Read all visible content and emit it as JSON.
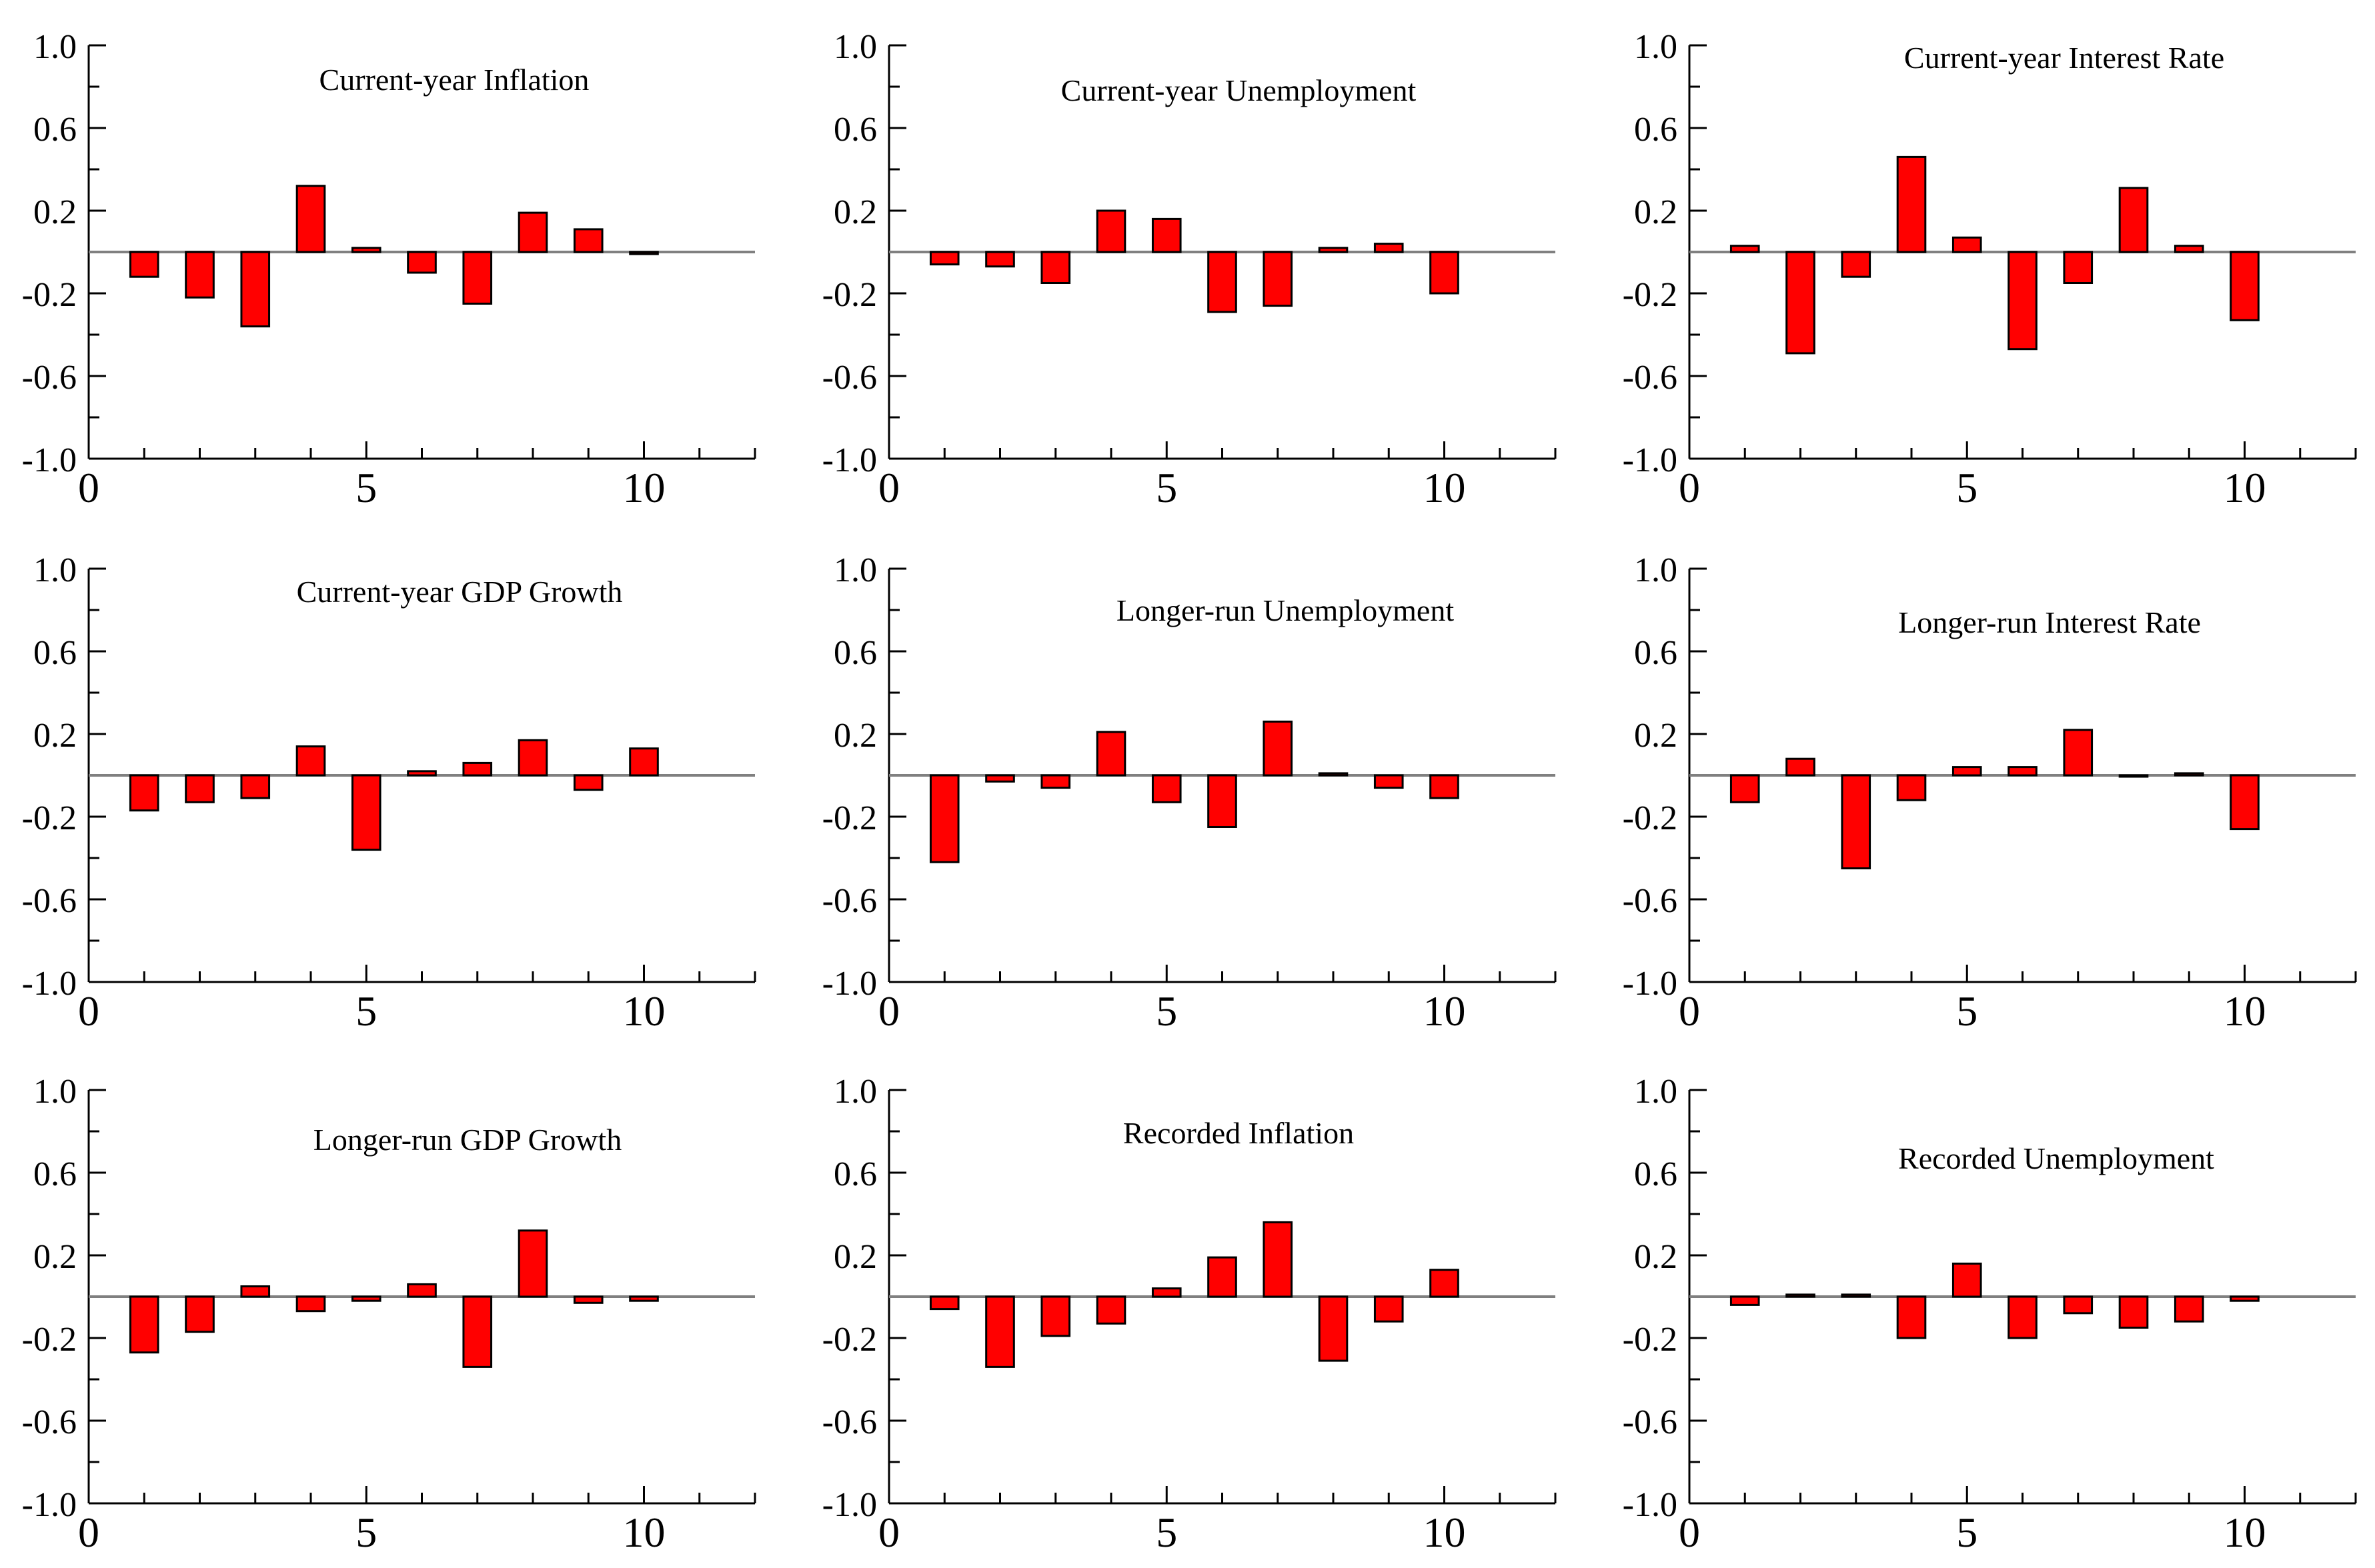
{
  "figure": {
    "x_ticks": [
      "0",
      "5",
      "10"
    ],
    "y_ticks": [
      "1.0",
      "0.6",
      "0.2",
      "-0.2",
      "-0.6",
      "-1.0"
    ],
    "bar_color": "#ff0000",
    "bar_edge_color": "#000000",
    "zero_line_color": "#808080"
  },
  "chart_data": [
    {
      "type": "bar",
      "title": "Current-year Inflation",
      "x": [
        1,
        2,
        3,
        4,
        5,
        6,
        7,
        8,
        9,
        10
      ],
      "values": [
        -0.12,
        -0.22,
        -0.36,
        0.32,
        0.02,
        -0.1,
        -0.25,
        0.19,
        0.11,
        -0.01
      ],
      "xlim": [
        0,
        12
      ],
      "ylim": [
        -1.0,
        1.0
      ],
      "xlabel": "",
      "ylabel": ""
    },
    {
      "type": "bar",
      "title": "Current-year Unemployment",
      "x": [
        1,
        2,
        3,
        4,
        5,
        6,
        7,
        8,
        9,
        10
      ],
      "values": [
        -0.06,
        -0.07,
        -0.15,
        0.2,
        0.16,
        -0.29,
        -0.26,
        0.02,
        0.04,
        -0.2
      ],
      "xlim": [
        0,
        12
      ],
      "ylim": [
        -1.0,
        1.0
      ],
      "xlabel": "",
      "ylabel": ""
    },
    {
      "type": "bar",
      "title": "Current-year Interest Rate",
      "x": [
        1,
        2,
        3,
        4,
        5,
        6,
        7,
        8,
        9,
        10
      ],
      "values": [
        0.03,
        -0.49,
        -0.12,
        0.46,
        0.07,
        -0.47,
        -0.15,
        0.31,
        0.03,
        -0.33
      ],
      "xlim": [
        0,
        12
      ],
      "ylim": [
        -1.0,
        1.0
      ],
      "xlabel": "",
      "ylabel": ""
    },
    {
      "type": "bar",
      "title": "Current-year GDP Growth",
      "x": [
        1,
        2,
        3,
        4,
        5,
        6,
        7,
        8,
        9,
        10
      ],
      "values": [
        -0.17,
        -0.13,
        -0.11,
        0.14,
        -0.36,
        0.02,
        0.06,
        0.17,
        -0.07,
        0.13
      ],
      "xlim": [
        0,
        12
      ],
      "ylim": [
        -1.0,
        1.0
      ],
      "xlabel": "",
      "ylabel": ""
    },
    {
      "type": "bar",
      "title": "Longer-run Unemployment",
      "x": [
        1,
        2,
        3,
        4,
        5,
        6,
        7,
        8,
        9,
        10
      ],
      "values": [
        -0.42,
        -0.03,
        -0.06,
        0.21,
        -0.13,
        -0.25,
        0.26,
        0.01,
        -0.06,
        -0.11
      ],
      "xlim": [
        0,
        12
      ],
      "ylim": [
        -1.0,
        1.0
      ],
      "xlabel": "",
      "ylabel": ""
    },
    {
      "type": "bar",
      "title": "Longer-run Interest Rate",
      "x": [
        1,
        2,
        3,
        4,
        5,
        6,
        7,
        8,
        9,
        10
      ],
      "values": [
        -0.13,
        0.08,
        -0.45,
        -0.12,
        0.04,
        0.04,
        0.22,
        -0.005,
        0.01,
        -0.26
      ],
      "xlim": [
        0,
        12
      ],
      "ylim": [
        -1.0,
        1.0
      ],
      "xlabel": "",
      "ylabel": ""
    },
    {
      "type": "bar",
      "title": "Longer-run GDP Growth",
      "x": [
        1,
        2,
        3,
        4,
        5,
        6,
        7,
        8,
        9,
        10
      ],
      "values": [
        -0.27,
        -0.17,
        0.05,
        -0.07,
        -0.02,
        0.06,
        -0.34,
        0.32,
        -0.03,
        -0.02
      ],
      "xlim": [
        0,
        12
      ],
      "ylim": [
        -1.0,
        1.0
      ],
      "xlabel": "",
      "ylabel": ""
    },
    {
      "type": "bar",
      "title": "Recorded Inflation",
      "x": [
        1,
        2,
        3,
        4,
        5,
        6,
        7,
        8,
        9,
        10
      ],
      "values": [
        -0.06,
        -0.34,
        -0.19,
        -0.13,
        0.04,
        0.19,
        0.36,
        -0.31,
        -0.12,
        0.13
      ],
      "xlim": [
        0,
        12
      ],
      "ylim": [
        -1.0,
        1.0
      ],
      "xlabel": "",
      "ylabel": ""
    },
    {
      "type": "bar",
      "title": "Recorded Unemployment",
      "x": [
        1,
        2,
        3,
        4,
        5,
        6,
        7,
        8,
        9,
        10
      ],
      "values": [
        -0.04,
        0.01,
        0.01,
        -0.2,
        0.16,
        -0.2,
        -0.08,
        -0.15,
        -0.12,
        -0.02
      ],
      "xlim": [
        0,
        12
      ],
      "ylim": [
        -1.0,
        1.0
      ],
      "xlabel": "",
      "ylabel": ""
    }
  ]
}
